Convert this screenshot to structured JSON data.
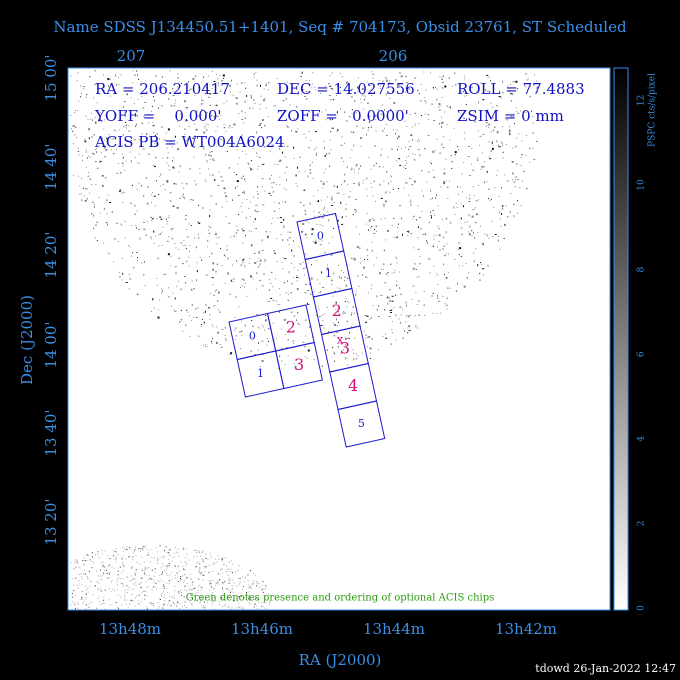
{
  "header": {
    "title": "Name SDSS J134450.51+1401, Seq # 704173, Obsid 23761, ST Scheduled"
  },
  "top_axis": {
    "ticks": [
      "207",
      "206"
    ]
  },
  "y_axis": {
    "label": "Dec (J2000)",
    "ticks": [
      "15 00'",
      "14 40'",
      "14 20'",
      "14 00'",
      "13 40'",
      "13 20'"
    ]
  },
  "x_axis": {
    "label": "RA (J2000)",
    "ticks": [
      "13h48m",
      "13h46m",
      "13h44m",
      "13h42m"
    ]
  },
  "info": {
    "ra": "RA = 206.210417",
    "dec": "DEC = 14.027556",
    "roll": "ROLL = 77.4883",
    "yoff": "YOFF =    0.000'",
    "zoff": "ZOFF =   0.0000'",
    "zsim": "ZSIM = 0 mm",
    "acis_pb": "ACIS PB = WT004A6024"
  },
  "colorbar": {
    "label": "PSPC cts/s/pixel",
    "ticks": [
      "0",
      "2",
      "4",
      "6",
      "8",
      "10",
      "12"
    ]
  },
  "chips": {
    "left": [
      "0",
      "1",
      "2",
      "3"
    ],
    "right": [
      "0",
      "1",
      "2",
      "3",
      "4",
      "5"
    ]
  },
  "note": "Green denotes presence and ordering of optional ACIS chips",
  "footer": "tdowd 26-Jan-2022 12:47"
}
